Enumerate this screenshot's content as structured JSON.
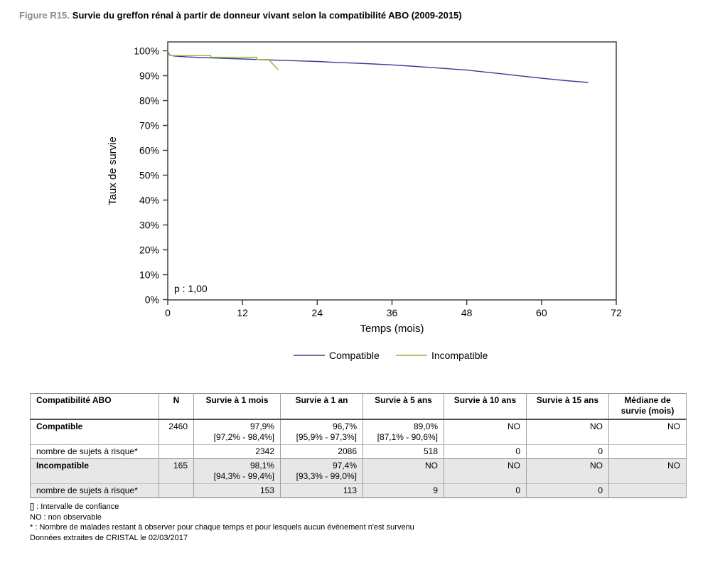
{
  "figure": {
    "label": "Figure R15.",
    "title": "Survie du greffon rénal à partir de donneur vivant selon la compatibilité ABO (2009-2015)"
  },
  "chart_data": {
    "type": "line",
    "subtype": "kaplan-meier-survival",
    "title": "",
    "xlabel": "Temps (mois)",
    "ylabel": "Taux de survie",
    "xlim": [
      0,
      72
    ],
    "ylim": [
      0,
      100
    ],
    "x_ticks": [
      0,
      12,
      24,
      36,
      48,
      60,
      72
    ],
    "y_ticks": [
      "0%",
      "10%",
      "20%",
      "30%",
      "40%",
      "50%",
      "60%",
      "70%",
      "80%",
      "90%",
      "100%"
    ],
    "p_value_annotation": "p : 1,00",
    "grid": false,
    "legend_position": "bottom-center",
    "series": [
      {
        "name": "Compatible",
        "color": "#3a3a94",
        "points": [
          [
            0,
            100
          ],
          [
            0.3,
            98.3
          ],
          [
            1,
            97.9
          ],
          [
            3,
            97.55
          ],
          [
            6,
            97.25
          ],
          [
            9,
            96.95
          ],
          [
            12,
            96.7
          ],
          [
            15,
            96.45
          ],
          [
            18,
            96.2
          ],
          [
            21,
            95.95
          ],
          [
            24,
            95.7
          ],
          [
            27,
            95.35
          ],
          [
            30,
            95.05
          ],
          [
            33,
            94.7
          ],
          [
            36,
            94.35
          ],
          [
            39,
            93.85
          ],
          [
            42,
            93.35
          ],
          [
            45,
            92.8
          ],
          [
            48,
            92.25
          ],
          [
            51,
            91.45
          ],
          [
            54,
            90.65
          ],
          [
            57,
            89.8
          ],
          [
            60,
            89.0
          ],
          [
            62,
            88.5
          ],
          [
            64,
            88.0
          ],
          [
            66,
            87.6
          ],
          [
            67.5,
            87.3
          ]
        ]
      },
      {
        "name": "Incompatible",
        "color": "#8cb43c",
        "points": [
          [
            0,
            100
          ],
          [
            0.4,
            98.1
          ],
          [
            6.9,
            98.1
          ],
          [
            6.9,
            97.4
          ],
          [
            14.3,
            97.4
          ],
          [
            14.3,
            96.5
          ],
          [
            16.2,
            96.5
          ],
          [
            17.7,
            92.5
          ]
        ]
      }
    ]
  },
  "table": {
    "headers": [
      "Compatibilité ABO",
      "N",
      "Survie à 1 mois",
      "Survie à 1 an",
      "Survie à 5 ans",
      "Survie à 10 ans",
      "Survie à 15 ans",
      "Médiane de survie (mois)"
    ],
    "rows": {
      "compatible": {
        "label": "Compatible",
        "n": "2460",
        "s1m": "97,9%",
        "s1m_ci": "[97,2% - 98,4%]",
        "s1y": "96,7%",
        "s1y_ci": "[95,9% - 97,3%]",
        "s5y": "89,0%",
        "s5y_ci": "[87,1% - 90,6%]",
        "s10y": "NO",
        "s15y": "NO",
        "median": "NO"
      },
      "compatible_risk": {
        "label": "nombre de sujets à risque*",
        "s1m": "2342",
        "s1y": "2086",
        "s5y": "518",
        "s10y": "0",
        "s15y": "0"
      },
      "incompatible": {
        "label": "Incompatible",
        "n": "165",
        "s1m": "98,1%",
        "s1m_ci": "[94,3% - 99,4%]",
        "s1y": "97,4%",
        "s1y_ci": "[93,3% - 99,0%]",
        "s5y": "NO",
        "s10y": "NO",
        "s15y": "NO",
        "median": "NO"
      },
      "incompatible_risk": {
        "label": "nombre de sujets à risque*",
        "s1m": "153",
        "s1y": "113",
        "s5y": "9",
        "s10y": "0",
        "s15y": "0"
      }
    }
  },
  "notes": [
    "[] : Intervalle de confiance",
    "NO : non observable",
    "* : Nombre de malades restant à observer pour chaque temps et pour lesquels aucun évènement n'est survenu",
    "Données extraites de CRISTAL le 02/03/2017"
  ]
}
